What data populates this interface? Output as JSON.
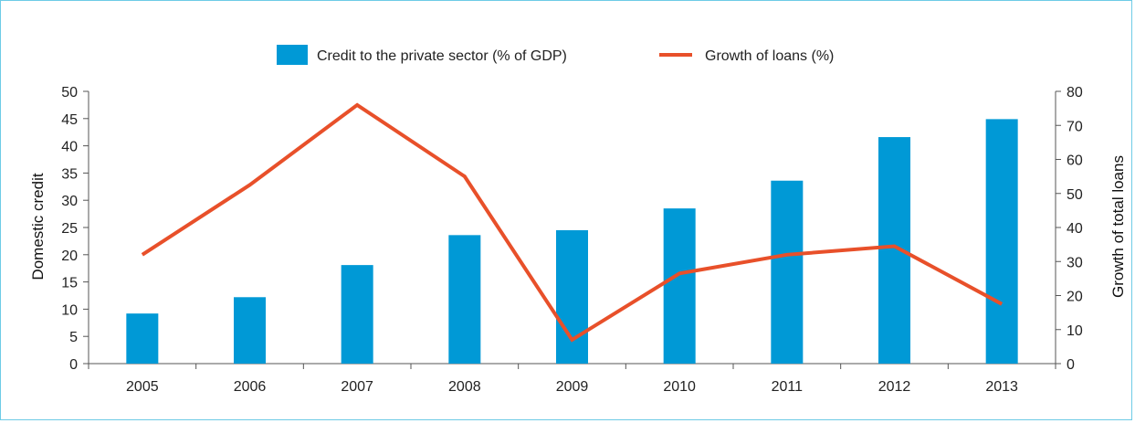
{
  "chart_data": {
    "type": "bar",
    "categories": [
      "2005",
      "2006",
      "2007",
      "2008",
      "2009",
      "2010",
      "2011",
      "2012",
      "2013"
    ],
    "series": [
      {
        "name": "Credit to the private sector (% of GDP)",
        "kind": "bar",
        "axis": "left",
        "color": "#0099d6",
        "values": [
          9.2,
          12.2,
          18.1,
          23.6,
          24.5,
          28.5,
          33.6,
          41.6,
          44.9
        ]
      },
      {
        "name": "Growth of loans (%)",
        "kind": "line",
        "axis": "right",
        "color": "#e8502a",
        "values": [
          32,
          52.5,
          76,
          55,
          7,
          26.5,
          32,
          34.5,
          17.5
        ]
      }
    ],
    "ylabel": "Domestic credit",
    "y2label": "Growth of total loans",
    "ylim": [
      0,
      50
    ],
    "y2lim": [
      0,
      80
    ],
    "yticks": [
      "0",
      "5",
      "10",
      "15",
      "20",
      "25",
      "30",
      "35",
      "40",
      "45",
      "50"
    ],
    "y2ticks": [
      "0",
      "10",
      "20",
      "30",
      "40",
      "50",
      "60",
      "70",
      "80"
    ],
    "grid": false,
    "legend": "top-center"
  }
}
